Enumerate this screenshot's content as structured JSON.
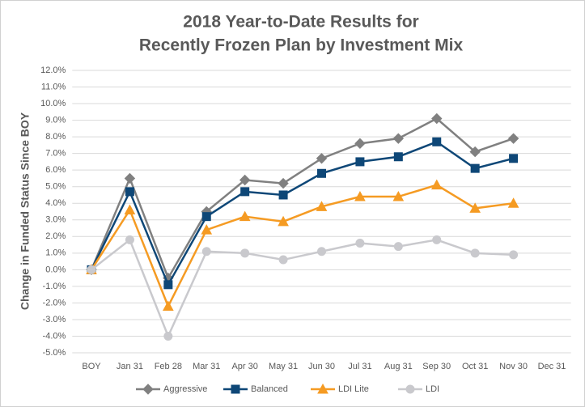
{
  "chart_data": {
    "type": "line",
    "title": [
      "2018 Year-to-Date Results for",
      "Recently Frozen Plan by Investment Mix"
    ],
    "y_label": "Change in Funded Status Since BOY",
    "categories": [
      "BOY",
      "Jan 31",
      "Feb 28",
      "Mar 31",
      "Apr 30",
      "May 31",
      "Jun 30",
      "Jul 31",
      "Aug 31",
      "Sep 30",
      "Oct 31",
      "Nov 30",
      "Dec 31"
    ],
    "series": [
      {
        "name": "Aggressive",
        "color": "#808080",
        "marker": "diamond",
        "values": [
          0,
          5.5,
          -0.5,
          3.5,
          5.4,
          5.2,
          6.7,
          7.6,
          7.9,
          9.1,
          7.1,
          7.9,
          null
        ]
      },
      {
        "name": "Balanced",
        "color": "#0e4777",
        "marker": "square",
        "values": [
          0,
          4.7,
          -0.9,
          3.2,
          4.7,
          4.5,
          5.8,
          6.5,
          6.8,
          7.7,
          6.1,
          6.7,
          null
        ]
      },
      {
        "name": "LDI Lite",
        "color": "#f59b23",
        "marker": "triangle",
        "values": [
          0,
          3.6,
          -2.2,
          2.4,
          3.2,
          2.9,
          3.8,
          4.4,
          4.4,
          5.1,
          3.7,
          4.0,
          null
        ]
      },
      {
        "name": "LDI",
        "color": "#c9c9cd",
        "marker": "circle",
        "values": [
          0,
          1.8,
          -4.0,
          1.1,
          1.0,
          0.6,
          1.1,
          1.6,
          1.4,
          1.8,
          1.0,
          0.9,
          null
        ]
      }
    ],
    "ylim": [
      -5,
      12
    ],
    "yticks": [
      {
        "value": -5,
        "label": "-5.0%"
      },
      {
        "value": -4,
        "label": "-4.0%"
      },
      {
        "value": -3,
        "label": "-3.0%"
      },
      {
        "value": -2,
        "label": "-2.0%"
      },
      {
        "value": -1,
        "label": "-1.0%"
      },
      {
        "value": 0,
        "label": "0.0%"
      },
      {
        "value": 1,
        "label": "1.0%"
      },
      {
        "value": 2,
        "label": "2.0%"
      },
      {
        "value": 3,
        "label": "3.0%"
      },
      {
        "value": 4,
        "label": "4.0%"
      },
      {
        "value": 5,
        "label": "5.0%"
      },
      {
        "value": 6,
        "label": "6.0%"
      },
      {
        "value": 7,
        "label": "7.0%"
      },
      {
        "value": 8,
        "label": "8.0%"
      },
      {
        "value": 9,
        "label": "9.0%"
      },
      {
        "value": 10,
        "label": "10.0%"
      },
      {
        "value": 11,
        "label": "11.0%"
      },
      {
        "value": 12,
        "label": "12.0%"
      }
    ],
    "grid": true,
    "legend": "bottom"
  }
}
